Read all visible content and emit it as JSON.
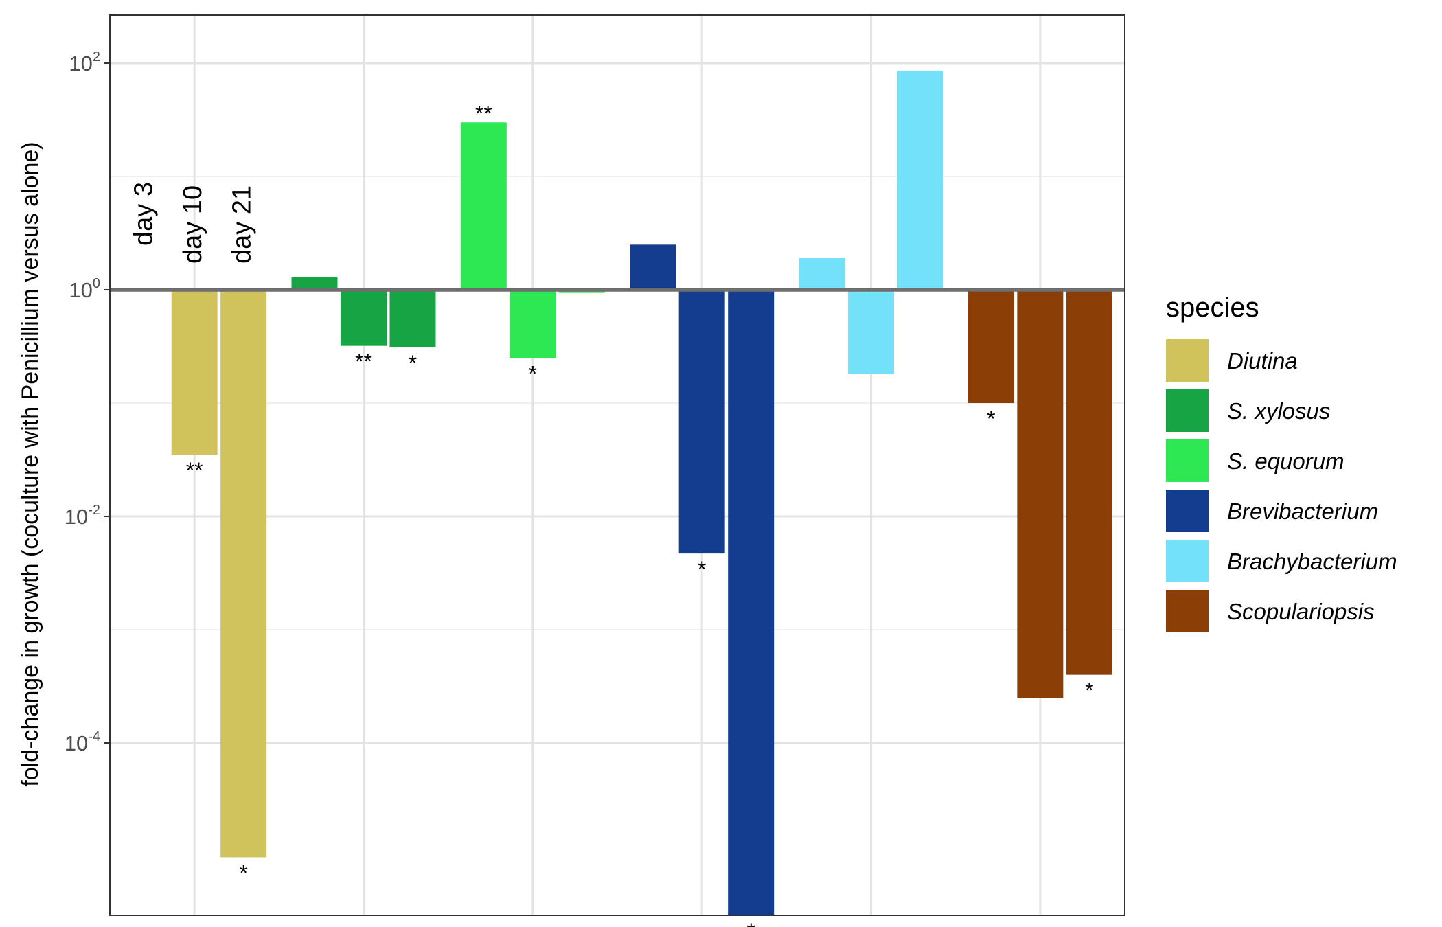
{
  "chart_data": {
    "type": "bar",
    "scale": "log10",
    "ylabel": "fold-change in growth (coculture with Penicillium versus alone)",
    "xlabel": "",
    "ylim": [
      2.5e-06,
      250
    ],
    "y_ticks": [
      {
        "value": 0.0001,
        "base": "10",
        "exp": "-4"
      },
      {
        "value": 0.01,
        "base": "10",
        "exp": "-2"
      },
      {
        "value": 1,
        "base": "10",
        "exp": "0"
      },
      {
        "value": 100,
        "base": "10",
        "exp": "2"
      }
    ],
    "y_minor_grid": [
      1e-06,
      0.001,
      0.1,
      10
    ],
    "reference_line": 1,
    "reference_line_color": "#6e6e6e",
    "grid": true,
    "categories": [
      "day 3",
      "day 10",
      "day 21"
    ],
    "day_labels": [
      "day 3",
      "day 10",
      "day 21"
    ],
    "series": [
      {
        "name": "Diutina",
        "color": "#D1C35B",
        "values": [
          1.03,
          0.035,
          9.8e-06
        ],
        "significance": [
          "",
          "**",
          "*"
        ]
      },
      {
        "name": "S. xylosus",
        "color": "#16A444",
        "values": [
          1.3,
          0.32,
          0.31
        ],
        "significance": [
          "",
          "**",
          "*"
        ]
      },
      {
        "name": "S. equorum",
        "color": "#2EE853",
        "values": [
          30,
          0.25,
          0.95
        ],
        "significance": [
          "**",
          "*",
          ""
        ]
      },
      {
        "name": "Brevibacterium",
        "color": "#143C8F",
        "values": [
          2.5,
          0.0047,
          2.5e-06
        ],
        "significance": [
          "",
          "*",
          "*"
        ]
      },
      {
        "name": "Brachybacterium",
        "color": "#74E1FA",
        "values": [
          1.9,
          0.18,
          85
        ],
        "significance": [
          "",
          "",
          ""
        ]
      },
      {
        "name": "Scopulariopsis",
        "color": "#8B3E05",
        "values": [
          0.1,
          0.00025,
          0.0004
        ],
        "significance": [
          "*",
          "",
          "*"
        ]
      }
    ],
    "legend": {
      "title": "species",
      "position": "right"
    }
  }
}
